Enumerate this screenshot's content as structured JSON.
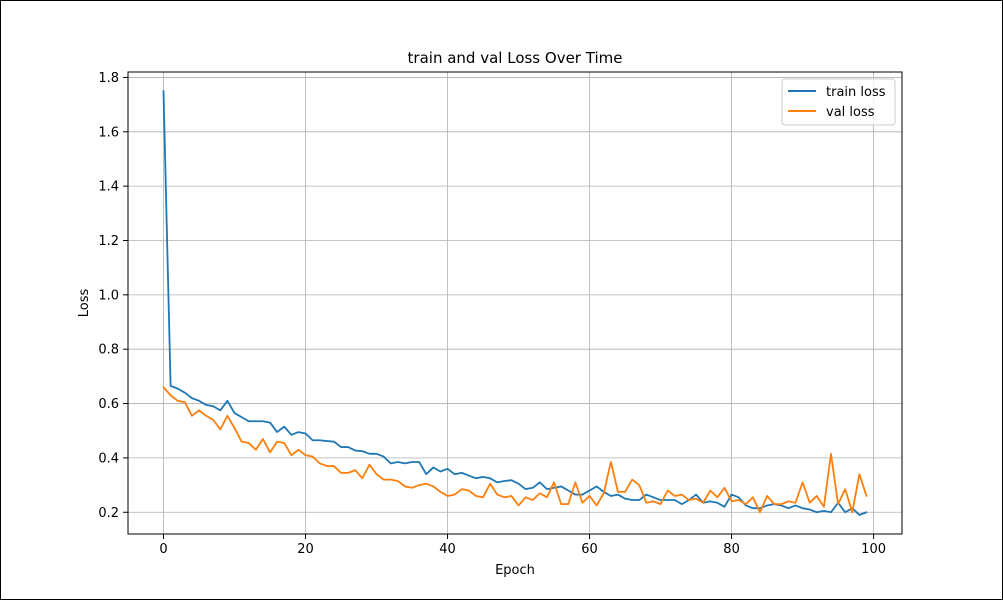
{
  "chart_data": {
    "type": "line",
    "title": "train and val Loss Over Time",
    "xlabel": "Epoch",
    "ylabel": "Loss",
    "xlim": [
      -5,
      104
    ],
    "ylim": [
      0.12,
      1.82
    ],
    "xticks": [
      0,
      20,
      40,
      60,
      80,
      100
    ],
    "yticks": [
      0.2,
      0.4,
      0.6,
      0.8,
      1.0,
      1.2,
      1.4,
      1.6,
      1.8
    ],
    "xtick_labels": [
      "0",
      "20",
      "40",
      "60",
      "80",
      "100"
    ],
    "ytick_labels": [
      "0.2",
      "0.4",
      "0.6",
      "0.8",
      "1.0",
      "1.2",
      "1.4",
      "1.6",
      "1.8"
    ],
    "grid": true,
    "legend_position": "top-right",
    "series": [
      {
        "name": "train loss",
        "color": "#1f77b4",
        "values": [
          1.75,
          0.665,
          0.655,
          0.64,
          0.62,
          0.61,
          0.595,
          0.59,
          0.575,
          0.61,
          0.565,
          0.55,
          0.535,
          0.535,
          0.535,
          0.53,
          0.495,
          0.515,
          0.485,
          0.495,
          0.49,
          0.465,
          0.465,
          0.462,
          0.46,
          0.44,
          0.44,
          0.427,
          0.425,
          0.415,
          0.415,
          0.405,
          0.38,
          0.385,
          0.38,
          0.385,
          0.385,
          0.34,
          0.365,
          0.35,
          0.36,
          0.34,
          0.345,
          0.335,
          0.325,
          0.33,
          0.325,
          0.31,
          0.315,
          0.318,
          0.305,
          0.285,
          0.29,
          0.31,
          0.285,
          0.29,
          0.295,
          0.28,
          0.265,
          0.265,
          0.28,
          0.295,
          0.275,
          0.26,
          0.265,
          0.25,
          0.245,
          0.245,
          0.265,
          0.255,
          0.245,
          0.245,
          0.245,
          0.23,
          0.245,
          0.265,
          0.235,
          0.24,
          0.235,
          0.22,
          0.265,
          0.255,
          0.225,
          0.215,
          0.215,
          0.225,
          0.23,
          0.225,
          0.215,
          0.225,
          0.215,
          0.21,
          0.2,
          0.205,
          0.2,
          0.235,
          0.2,
          0.215,
          0.19,
          0.2
        ]
      },
      {
        "name": "val loss",
        "color": "#ff7f0e",
        "values": [
          0.66,
          0.63,
          0.61,
          0.605,
          0.555,
          0.575,
          0.555,
          0.54,
          0.505,
          0.555,
          0.51,
          0.46,
          0.455,
          0.43,
          0.47,
          0.42,
          0.46,
          0.455,
          0.41,
          0.43,
          0.41,
          0.405,
          0.38,
          0.37,
          0.37,
          0.345,
          0.345,
          0.355,
          0.325,
          0.375,
          0.34,
          0.32,
          0.32,
          0.315,
          0.295,
          0.29,
          0.3,
          0.305,
          0.295,
          0.275,
          0.26,
          0.265,
          0.285,
          0.28,
          0.26,
          0.255,
          0.305,
          0.265,
          0.255,
          0.26,
          0.225,
          0.255,
          0.245,
          0.27,
          0.255,
          0.31,
          0.23,
          0.23,
          0.31,
          0.235,
          0.26,
          0.225,
          0.27,
          0.385,
          0.275,
          0.275,
          0.32,
          0.3,
          0.235,
          0.24,
          0.23,
          0.28,
          0.26,
          0.265,
          0.245,
          0.25,
          0.235,
          0.28,
          0.255,
          0.29,
          0.24,
          0.245,
          0.23,
          0.255,
          0.2,
          0.26,
          0.23,
          0.23,
          0.24,
          0.235,
          0.31,
          0.235,
          0.26,
          0.22,
          0.415,
          0.23,
          0.285,
          0.2,
          0.34,
          0.26
        ]
      }
    ]
  }
}
